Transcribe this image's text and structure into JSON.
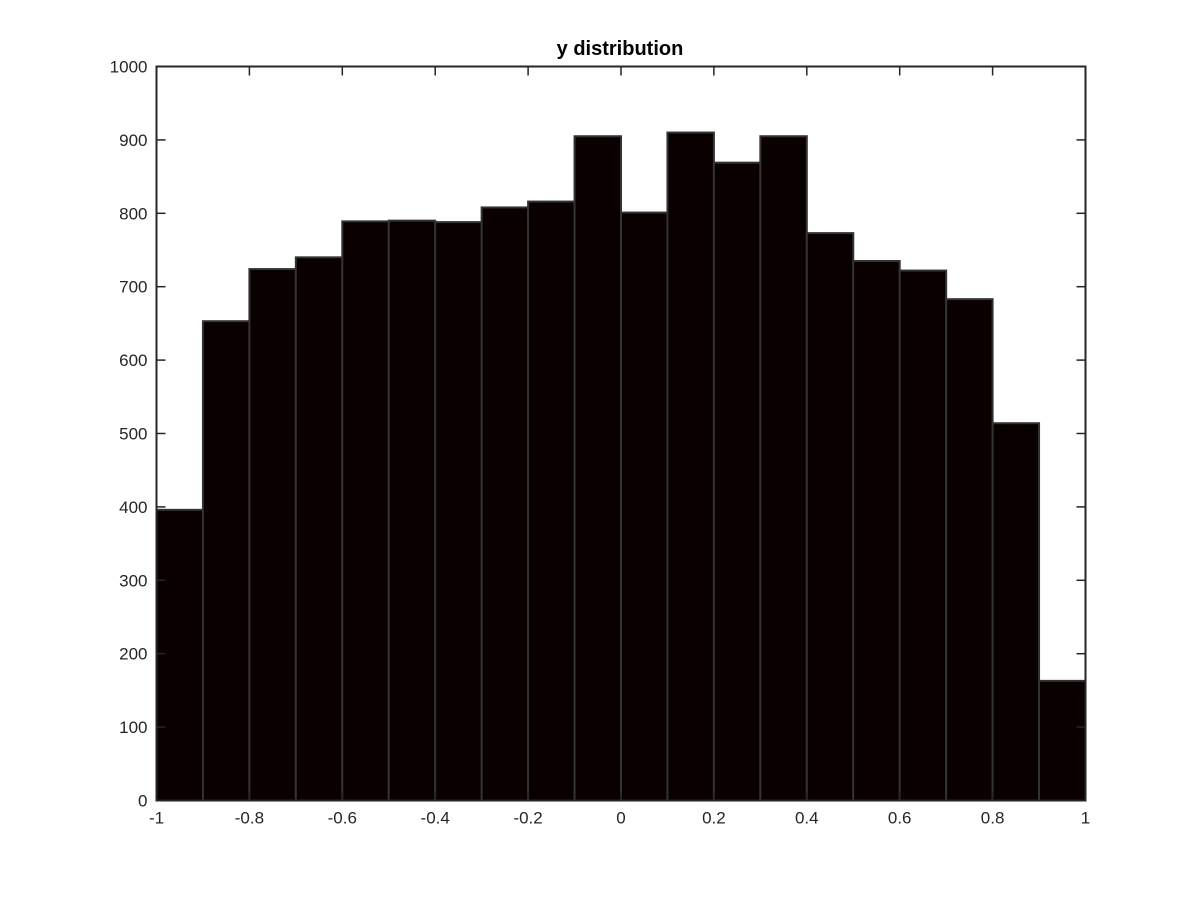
{
  "chart_data": {
    "type": "bar",
    "title": "y distribution",
    "xlabel": "",
    "ylabel": "",
    "bin_edges": [
      -1,
      -0.9,
      -0.8,
      -0.7,
      -0.6,
      -0.5,
      -0.4,
      -0.3,
      -0.2,
      -0.1,
      0,
      0.1,
      0.2,
      0.3,
      0.4,
      0.5,
      0.6,
      0.7,
      0.8,
      0.9,
      1
    ],
    "values": [
      396,
      653,
      724,
      740,
      789,
      790,
      788,
      808,
      816,
      905,
      801,
      910,
      869,
      905,
      773,
      735,
      722,
      683,
      514,
      163
    ],
    "xlim": [
      -1,
      1
    ],
    "ylim": [
      0,
      1000
    ],
    "xticks": [
      -1,
      -0.8,
      -0.6,
      -0.4,
      -0.2,
      0,
      0.2,
      0.4,
      0.6,
      0.8,
      1
    ],
    "xtick_labels": [
      "-1",
      "-0.8",
      "-0.6",
      "-0.4",
      "-0.2",
      "0",
      "0.2",
      "0.4",
      "0.6",
      "0.8",
      "1"
    ],
    "yticks": [
      0,
      100,
      200,
      300,
      400,
      500,
      600,
      700,
      800,
      900,
      1000
    ],
    "ytick_labels": [
      "0",
      "100",
      "200",
      "300",
      "400",
      "500",
      "600",
      "700",
      "800",
      "900",
      "1000"
    ],
    "grid": false,
    "bar_color": "#0a0000",
    "bar_edge_color": "#333333",
    "axis_color": "#262626"
  }
}
